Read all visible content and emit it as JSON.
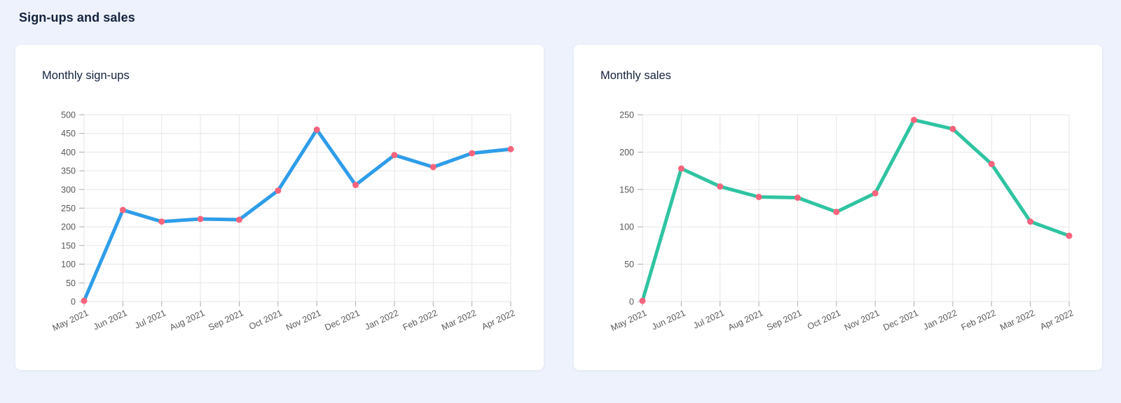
{
  "page": {
    "title": "Sign-ups and sales"
  },
  "theme": {
    "background": "#EEF2FC",
    "card_background": "#FFFFFF",
    "heading_color": "#14233F",
    "grid_color": "#E6E6E6",
    "tick_color": "#AAAAAA",
    "label_color": "#595959"
  },
  "chart_data": [
    {
      "type": "line",
      "title": "Monthly sign-ups",
      "categories": [
        "May 2021",
        "Jun 2021",
        "Jul 2021",
        "Aug 2021",
        "Sep 2021",
        "Oct 2021",
        "Nov 2021",
        "Dec 2021",
        "Jan 2022",
        "Feb 2022",
        "Mar 2022",
        "Apr 2022"
      ],
      "values": [
        2,
        245,
        214,
        221,
        219,
        297,
        460,
        312,
        392,
        360,
        397,
        408
      ],
      "ylim": [
        0,
        500
      ],
      "ytick_step": 50,
      "xlabel": "",
      "ylabel": "",
      "grid": true,
      "legend": false,
      "x_label_rotation": -25,
      "line_color": "#2E9DE9",
      "point_color": "#F8647D"
    },
    {
      "type": "line",
      "title": "Monthly sales",
      "categories": [
        "May 2021",
        "Jun 2021",
        "Jul 2021",
        "Aug 2021",
        "Sep 2021",
        "Oct 2021",
        "Nov 2021",
        "Dec 2021",
        "Jan 2022",
        "Feb 2022",
        "Mar 2022",
        "Apr 2022"
      ],
      "values": [
        1,
        178,
        154,
        140,
        139,
        120,
        145,
        243,
        231,
        184,
        107,
        88
      ],
      "ylim": [
        0,
        250
      ],
      "ytick_step": 50,
      "xlabel": "",
      "ylabel": "",
      "grid": true,
      "legend": false,
      "x_label_rotation": -25,
      "line_color": "#30C4A1",
      "point_color": "#F8647D"
    }
  ]
}
